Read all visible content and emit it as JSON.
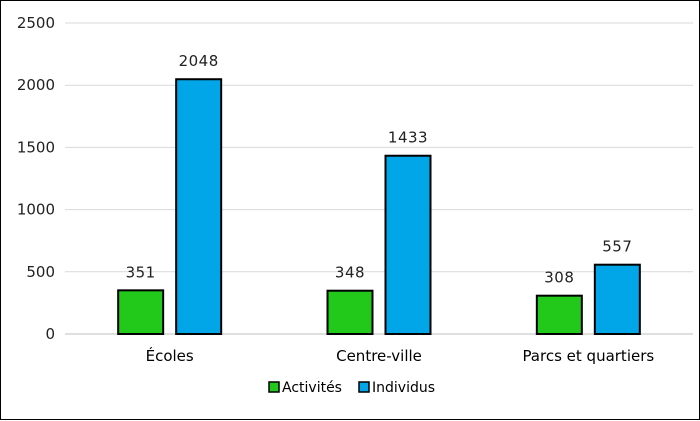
{
  "chart_data": {
    "type": "bar",
    "categories": [
      "Écoles",
      "Centre-ville",
      "Parcs et quartiers"
    ],
    "series": [
      {
        "name": "Activités",
        "values": [
          351,
          348,
          308
        ],
        "color": "#22c91a"
      },
      {
        "name": "Individus",
        "values": [
          2048,
          1433,
          557
        ],
        "color": "#00a6e8"
      }
    ],
    "ylim": [
      0,
      2500
    ],
    "yticks": [
      0,
      500,
      1000,
      1500,
      2000,
      2500
    ],
    "grid": true,
    "legend_position": "bottom",
    "data_labels": true
  }
}
